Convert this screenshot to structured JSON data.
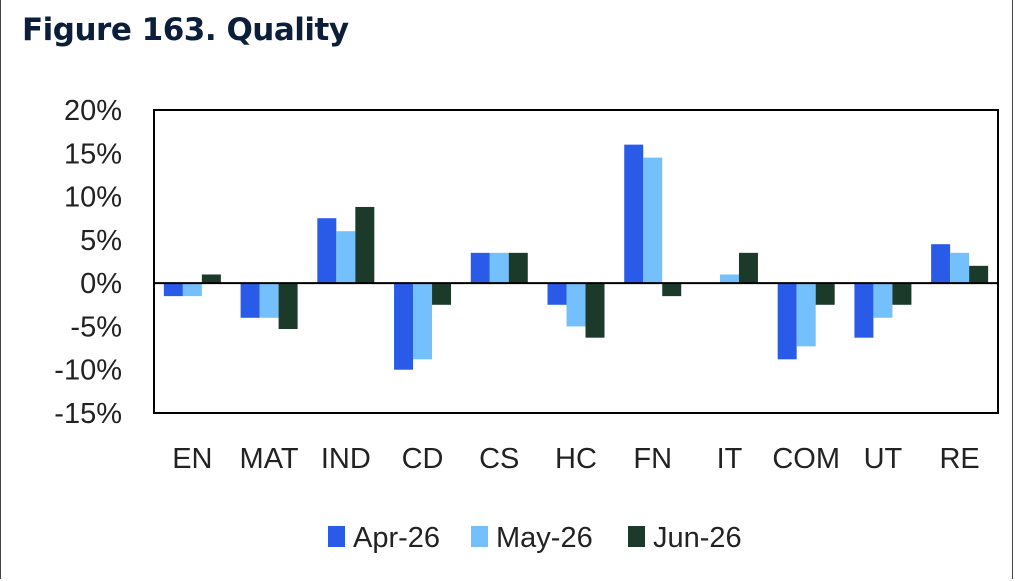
{
  "title": "Figure 163. Quality",
  "chart_data": {
    "type": "bar",
    "title": "Figure 163. Quality",
    "categories": [
      "EN",
      "MAT",
      "IND",
      "CD",
      "CS",
      "HC",
      "FN",
      "IT",
      "COM",
      "UT",
      "RE"
    ],
    "series": [
      {
        "name": "Apr-26",
        "color": "#2a5be8",
        "values": [
          -1.5,
          -4,
          7.5,
          -10,
          3.5,
          -2.5,
          16,
          0,
          -8.8,
          -6.3,
          4.5
        ]
      },
      {
        "name": "May-26",
        "color": "#74c0fc",
        "values": [
          -1.5,
          -4,
          6,
          -8.8,
          3.5,
          -5,
          14.5,
          1,
          -7.3,
          -4,
          3.5
        ]
      },
      {
        "name": "Jun-26",
        "color": "#1b3a2a",
        "values": [
          1,
          -5.3,
          8.8,
          -2.5,
          3.5,
          -6.3,
          -1.5,
          3.5,
          -2.5,
          -2.5,
          2
        ]
      }
    ],
    "yticks": [
      "20%",
      "15%",
      "10%",
      "5%",
      "0%",
      "-5%",
      "-10%",
      "-15%"
    ],
    "ylim": [
      -15,
      20
    ],
    "xlabel": "",
    "ylabel": "",
    "grid": false,
    "legend_position": "bottom"
  }
}
